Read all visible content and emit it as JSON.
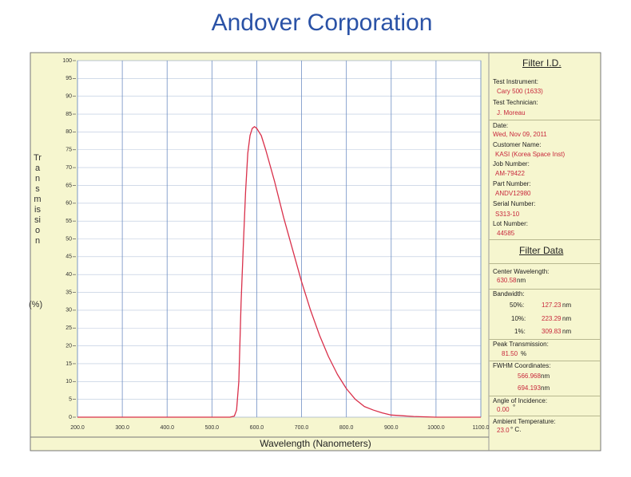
{
  "header": {
    "title": "Andover  Corporation"
  },
  "chart_data": {
    "type": "line",
    "y_label": "Transmission",
    "y_unit": "(%)",
    "x_label": "Wavelength  (Nanometers)",
    "x": [
      200,
      500,
      540,
      550,
      555,
      560,
      565,
      570,
      575,
      580,
      585,
      590,
      595,
      600,
      610,
      620,
      640,
      660,
      680,
      700,
      720,
      740,
      760,
      780,
      800,
      820,
      840,
      860,
      880,
      900,
      950,
      1000,
      1100
    ],
    "values": [
      0,
      0,
      0,
      0.3,
      2,
      10,
      32,
      48,
      63,
      74,
      79,
      81,
      81.5,
      81,
      79,
      75,
      66,
      56,
      47,
      38,
      30,
      23,
      17,
      12,
      8,
      5,
      3,
      2,
      1.2,
      0.6,
      0.2,
      0,
      0
    ],
    "color": "#d9304a",
    "xlim": [
      200,
      1100
    ],
    "xticks": [
      {
        "value": 200,
        "label": "200.0"
      },
      {
        "value": 300,
        "label": "300.0"
      },
      {
        "value": 400,
        "label": "400.0"
      },
      {
        "value": 500,
        "label": "500.0"
      },
      {
        "value": 600,
        "label": "600.0"
      },
      {
        "value": 700,
        "label": "700.0"
      },
      {
        "value": 800,
        "label": "800.0"
      },
      {
        "value": 900,
        "label": "900.0"
      },
      {
        "value": 1000,
        "label": "1000.0"
      },
      {
        "value": 1100,
        "label": "1100.0"
      }
    ],
    "ylim": [
      0,
      100
    ],
    "yticks": [
      0,
      5,
      10,
      15,
      20,
      25,
      30,
      35,
      40,
      45,
      50,
      55,
      60,
      65,
      70,
      75,
      80,
      85,
      90,
      95,
      100
    ],
    "grid": true
  },
  "filter_id": {
    "heading": "Filter I.D.",
    "fields": [
      {
        "label": "Test Instrument:",
        "value": "Cary 500 (1633)"
      },
      {
        "label": "Test Technician:",
        "value": "J. Moreau"
      },
      {
        "label": "Date:",
        "value": "Wed, Nov 09, 2011"
      },
      {
        "label": "Customer Name:",
        "value": "KASI  (Korea Space Inst)"
      },
      {
        "label": "Job Number:",
        "value": "AM-79422"
      },
      {
        "label": "Part Number:",
        "value": "ANDV12980"
      },
      {
        "label": "Serial Number:",
        "value": "S313-10"
      },
      {
        "label": "Lot Number:",
        "value": "44585"
      }
    ]
  },
  "filter_data": {
    "heading": "Filter Data",
    "center_wavelength": {
      "label": "Center Wavelength:",
      "value": "630.58",
      "unit": "nm"
    },
    "bandwidth": {
      "label": "Bandwidth:",
      "rows": [
        {
          "level": "50%:",
          "value": "127.23",
          "unit": "nm"
        },
        {
          "level": "10%:",
          "value": "223.29",
          "unit": "nm"
        },
        {
          "level": "1%:",
          "value": "309.83",
          "unit": "nm"
        }
      ]
    },
    "peak_transmission": {
      "label": "Peak Transmission:",
      "value": "81.50",
      "unit": "%"
    },
    "fwhm": {
      "label": "FWHM Coordinates:",
      "values": [
        {
          "value": "566.968",
          "unit": "nm"
        },
        {
          "value": "694.193",
          "unit": "nm"
        }
      ]
    },
    "angle": {
      "label": "Angle of Incidence:",
      "value": "0.00",
      "unit": "°"
    },
    "temperature": {
      "label": "Ambient Temperature:",
      "value": "23.0",
      "unit": "° C."
    }
  }
}
